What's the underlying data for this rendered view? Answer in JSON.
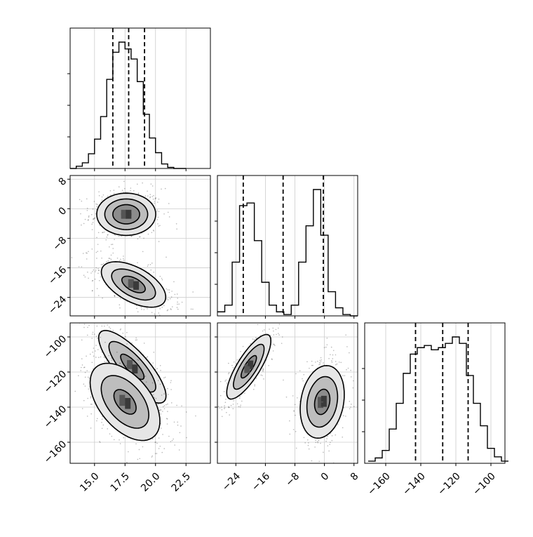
{
  "chart_data": {
    "type": "corner",
    "parameters": [
      {
        "ticks": [
          15.0,
          17.5,
          20.0,
          22.5
        ],
        "tick_labels": [
          "15.0",
          "17.5",
          "20.0",
          "22.5"
        ],
        "range": [
          13.0,
          24.5
        ],
        "quantiles": [
          16.5,
          17.8,
          19.1
        ],
        "hist": {
          "edges": [
            13.0,
            13.5,
            14.0,
            14.5,
            15.0,
            15.5,
            16.0,
            16.5,
            17.0,
            17.5,
            18.0,
            18.5,
            19.0,
            19.5,
            20.0,
            20.5,
            21.0,
            21.5,
            22.0,
            22.5
          ],
          "counts": [
            0,
            2,
            5,
            13,
            26,
            46,
            79,
            103,
            112,
            106,
            97,
            77,
            48,
            27,
            14,
            4,
            1,
            0,
            0
          ]
        }
      },
      {
        "ticks": [
          -24,
          -16,
          -8,
          0,
          8
        ],
        "tick_labels": [
          "−24",
          "−16",
          "−8",
          "0",
          "8"
        ],
        "range": [
          -29,
          9
        ],
        "quantiles": [
          -22,
          -11.2,
          -0.3
        ],
        "hist": {
          "edges": [
            -29,
            -27,
            -25,
            -23,
            -21,
            -19,
            -17,
            -15,
            -13,
            -11,
            -9,
            -7,
            -5,
            -3,
            -1,
            1,
            3,
            5,
            7,
            9
          ],
          "counts": [
            3,
            8,
            40,
            82,
            84,
            56,
            25,
            8,
            3,
            1,
            8,
            40,
            67,
            94,
            60,
            18,
            6,
            1,
            0
          ]
        }
      },
      {
        "ticks": [
          -160,
          -140,
          -120,
          -100
        ],
        "tick_labels": [
          "−160",
          "−140",
          "−120",
          "−100"
        ],
        "range": [
          -172,
          -92
        ],
        "quantiles": [
          -143,
          -127.5,
          -113
        ],
        "hist": {
          "edges": [
            -170,
            -166,
            -162,
            -158,
            -154,
            -150,
            -146,
            -142,
            -138,
            -134,
            -130,
            -126,
            -122,
            -118,
            -114,
            -110,
            -106,
            -102,
            -98,
            -94,
            -90
          ],
          "counts": [
            2,
            5,
            12,
            32,
            56,
            84,
            102,
            108,
            110,
            106,
            108,
            112,
            118,
            112,
            82,
            56,
            35,
            14,
            6,
            2
          ]
        }
      }
    ],
    "pairs": [
      {
        "row": 1,
        "col": 0,
        "modes": [
          {
            "mean": [
              17.6,
              -1.5
            ],
            "sd": [
              1.1,
              2.6
            ],
            "rho": 0.0,
            "levels": [
              1.0,
              1.6,
              2.2
            ]
          },
          {
            "mean": [
              18.2,
              -20.5
            ],
            "sd": [
              1.2,
              2.8
            ],
            "rho": -0.55,
            "levels": [
              0.8,
              1.5,
              2.2
            ]
          }
        ]
      },
      {
        "row": 2,
        "col": 0,
        "modes": [
          {
            "mean": [
              18.1,
              -117
            ],
            "sd": [
              1.2,
              9
            ],
            "rho": -0.8,
            "levels": [
              0.8,
              1.6,
              2.3
            ]
          },
          {
            "mean": [
              17.5,
              -137
            ],
            "sd": [
              1.3,
              10
            ],
            "rho": -0.5,
            "levels": [
              0.7,
              1.5,
              2.2
            ]
          }
        ]
      },
      {
        "row": 2,
        "col": 1,
        "modes": [
          {
            "mean": [
              -20.5,
              -117
            ],
            "sd": [
              2.6,
              8
            ],
            "rho": 0.8,
            "levels": [
              0.8,
              1.6,
              2.3
            ]
          },
          {
            "mean": [
              -0.6,
              -137
            ],
            "sd": [
              2.6,
              9
            ],
            "rho": 0.2,
            "levels": [
              0.8,
              1.6,
              2.3
            ]
          }
        ]
      }
    ],
    "quantile_style": "dashed",
    "grid": true
  }
}
